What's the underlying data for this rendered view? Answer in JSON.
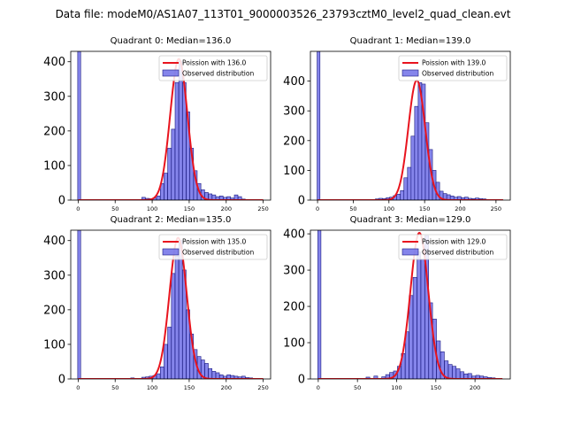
{
  "figure": {
    "suptitle": "Data file: modeM0/AS1A07_113T01_9000003526_23793cztM0_level2_quad_clean.evt"
  },
  "colors": {
    "bar_fill": "#7070e8",
    "bar_edge": "#1a1a80",
    "fit_line": "#e8141e",
    "axes": "#000000"
  },
  "chart_data": [
    {
      "type": "bar",
      "title": "Quadrant 0: Median=136.0",
      "legend": {
        "line_label": "Poission with 136.0",
        "bar_label": "Observed distribution",
        "placement": "top-right"
      },
      "xlim": [
        -10,
        260
      ],
      "ylim": [
        0,
        430
      ],
      "xticks": [
        0,
        50,
        100,
        150,
        200,
        250
      ],
      "yticks": [
        0,
        100,
        200,
        300,
        400
      ],
      "bin_width": 4.8,
      "zero_bin": {
        "x": 0,
        "height": 430
      },
      "mean": 136.0,
      "bins": {
        "x": [
          86,
          91,
          96,
          101,
          106,
          111,
          116,
          121,
          126,
          131,
          136,
          141,
          146,
          151,
          156,
          161,
          166,
          171,
          176,
          181,
          186,
          191,
          196,
          201,
          206,
          211,
          216,
          221
        ],
        "y": [
          8,
          5,
          4,
          6,
          12,
          48,
          78,
          150,
          205,
          340,
          400,
          340,
          255,
          150,
          85,
          48,
          30,
          22,
          18,
          15,
          10,
          12,
          8,
          10,
          6,
          15,
          10,
          3
        ]
      },
      "curve": {
        "x0": 0,
        "x1": 250
      }
    },
    {
      "type": "bar",
      "title": "Quadrant 1: Median=139.0",
      "legend": {
        "line_label": "Poission with 139.0",
        "bar_label": "Observed distribution",
        "placement": "top-right"
      },
      "xlim": [
        -10,
        270
      ],
      "ylim": [
        0,
        500
      ],
      "xticks": [
        0,
        50,
        100,
        150,
        200,
        250
      ],
      "yticks": [
        0,
        100,
        200,
        300,
        400
      ],
      "bin_width": 5.0,
      "zero_bin": {
        "x": 0,
        "height": 500
      },
      "mean": 139.0,
      "bins": {
        "x": [
          81,
          86,
          91,
          96,
          101,
          106,
          111,
          116,
          121,
          126,
          131,
          136,
          141,
          146,
          151,
          156,
          161,
          166,
          171,
          176,
          181,
          186,
          191,
          196,
          201,
          206,
          211,
          216,
          221,
          226,
          231
        ],
        "y": [
          4,
          6,
          5,
          8,
          10,
          15,
          20,
          32,
          75,
          110,
          215,
          315,
          395,
          390,
          260,
          170,
          100,
          60,
          30,
          22,
          18,
          14,
          10,
          12,
          8,
          10,
          6,
          5,
          7,
          5,
          4
        ]
      },
      "curve": {
        "x0": 0,
        "x1": 260
      }
    },
    {
      "type": "bar",
      "title": "Quadrant 2: Median=135.0",
      "legend": {
        "line_label": "Poission with 135.0",
        "bar_label": "Observed distribution",
        "placement": "top-right"
      },
      "xlim": [
        -10,
        260
      ],
      "ylim": [
        0,
        430
      ],
      "xticks": [
        0,
        50,
        100,
        150,
        200,
        250
      ],
      "yticks": [
        0,
        100,
        200,
        300,
        400
      ],
      "bin_width": 4.8,
      "zero_bin": {
        "x": 0,
        "height": 430
      },
      "mean": 135.0,
      "bins": {
        "x": [
          71,
          86,
          91,
          96,
          101,
          106,
          111,
          116,
          121,
          126,
          131,
          136,
          141,
          146,
          151,
          156,
          161,
          166,
          171,
          176,
          181,
          186,
          191,
          196,
          201,
          206,
          211,
          216,
          221,
          226,
          231
        ],
        "y": [
          3,
          5,
          6,
          8,
          10,
          15,
          35,
          100,
          150,
          305,
          355,
          400,
          315,
          200,
          130,
          85,
          65,
          55,
          45,
          30,
          22,
          18,
          12,
          8,
          12,
          10,
          8,
          6,
          8,
          4,
          3
        ]
      },
      "curve": {
        "x0": 0,
        "x1": 250
      }
    },
    {
      "type": "bar",
      "title": "Quadrant 3: Median=129.0",
      "legend": {
        "line_label": "Poission with 129.0",
        "bar_label": "Observed distribution",
        "placement": "top-right"
      },
      "xlim": [
        -10,
        245
      ],
      "ylim": [
        0,
        410
      ],
      "xticks": [
        0,
        50,
        100,
        150,
        200
      ],
      "yticks": [
        0,
        100,
        200,
        300,
        400
      ],
      "bin_width": 4.8,
      "zero_bin": {
        "x": 0,
        "height": 410
      },
      "mean": 129.0,
      "bins": {
        "x": [
          61,
          71,
          81,
          86,
          91,
          96,
          101,
          106,
          111,
          116,
          121,
          126,
          131,
          136,
          141,
          146,
          151,
          156,
          161,
          166,
          171,
          176,
          181,
          186,
          191,
          196,
          201,
          206,
          211,
          216,
          221
        ],
        "y": [
          5,
          8,
          6,
          12,
          18,
          22,
          35,
          70,
          130,
          230,
          280,
          350,
          330,
          395,
          210,
          165,
          105,
          75,
          50,
          40,
          35,
          28,
          20,
          14,
          15,
          8,
          10,
          8,
          6,
          4,
          3
        ]
      },
      "curve": {
        "x0": 0,
        "x1": 235
      }
    }
  ]
}
